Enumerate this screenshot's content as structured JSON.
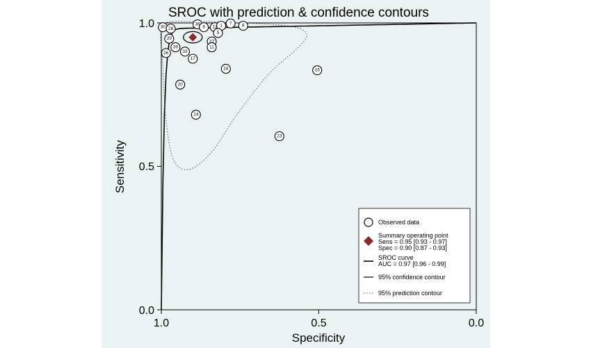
{
  "chart_data": {
    "type": "scatter",
    "title": "SROC with  prediction & confidence contours",
    "xlabel": "Specificity",
    "ylabel": "Sensitivity",
    "xlim": [
      1.0,
      0.0
    ],
    "ylim": [
      0.0,
      1.0
    ],
    "x_reversed": true,
    "xticks": [
      "1.0",
      "0.5",
      "0.0"
    ],
    "yticks": [
      "0.0",
      "0.5",
      "1.0"
    ],
    "grid": false,
    "legend_position": "bottom-right",
    "colors": {
      "summary": "#8b2a2a",
      "panel": "#eaf2f3",
      "curve": "#000000"
    },
    "observed": [
      {
        "label": "30",
        "spec": 0.995,
        "sens": 0.985
      },
      {
        "label": "28",
        "spec": 0.97,
        "sens": 0.98
      },
      {
        "label": "36",
        "spec": 0.885,
        "sens": 0.995
      },
      {
        "label": "6",
        "spec": 0.865,
        "sens": 0.985
      },
      {
        "label": "12",
        "spec": 0.83,
        "sens": 0.985
      },
      {
        "label": "1",
        "spec": 0.81,
        "sens": 0.99
      },
      {
        "label": "7",
        "spec": 0.78,
        "sens": 0.998
      },
      {
        "label": "8",
        "spec": 0.74,
        "sens": 0.99
      },
      {
        "label": "5",
        "spec": 0.82,
        "sens": 0.965
      },
      {
        "label": "29",
        "spec": 0.975,
        "sens": 0.945
      },
      {
        "label": "26",
        "spec": 0.985,
        "sens": 0.895
      },
      {
        "label": "39",
        "spec": 0.955,
        "sens": 0.915
      },
      {
        "label": "22",
        "spec": 0.84,
        "sens": 0.935
      },
      {
        "label": "11",
        "spec": 0.84,
        "sens": 0.915
      },
      {
        "label": "33",
        "spec": 0.925,
        "sens": 0.9
      },
      {
        "label": "17",
        "spec": 0.9,
        "sens": 0.875
      },
      {
        "label": "18",
        "spec": 0.795,
        "sens": 0.84
      },
      {
        "label": "16",
        "spec": 0.505,
        "sens": 0.835
      },
      {
        "label": "20",
        "spec": 0.94,
        "sens": 0.785
      },
      {
        "label": "24",
        "spec": 0.89,
        "sens": 0.68
      },
      {
        "label": "23",
        "spec": 0.625,
        "sens": 0.605
      }
    ],
    "summary_point": {
      "spec": 0.9,
      "sens": 0.95
    },
    "legend": {
      "observed": "Observed data",
      "summary_title": "Summary operating point",
      "summary_sens": "Sens = 0.95 [0.93 - 0.97]",
      "summary_spec": "Spec = 0.90 [0.87 - 0.93]",
      "sroc_title": "SROC curve",
      "sroc_auc": "AUC = 0.97 [0.96 - 0.99]",
      "confidence": "95% confidence contour",
      "prediction": "95% prediction contour"
    }
  }
}
